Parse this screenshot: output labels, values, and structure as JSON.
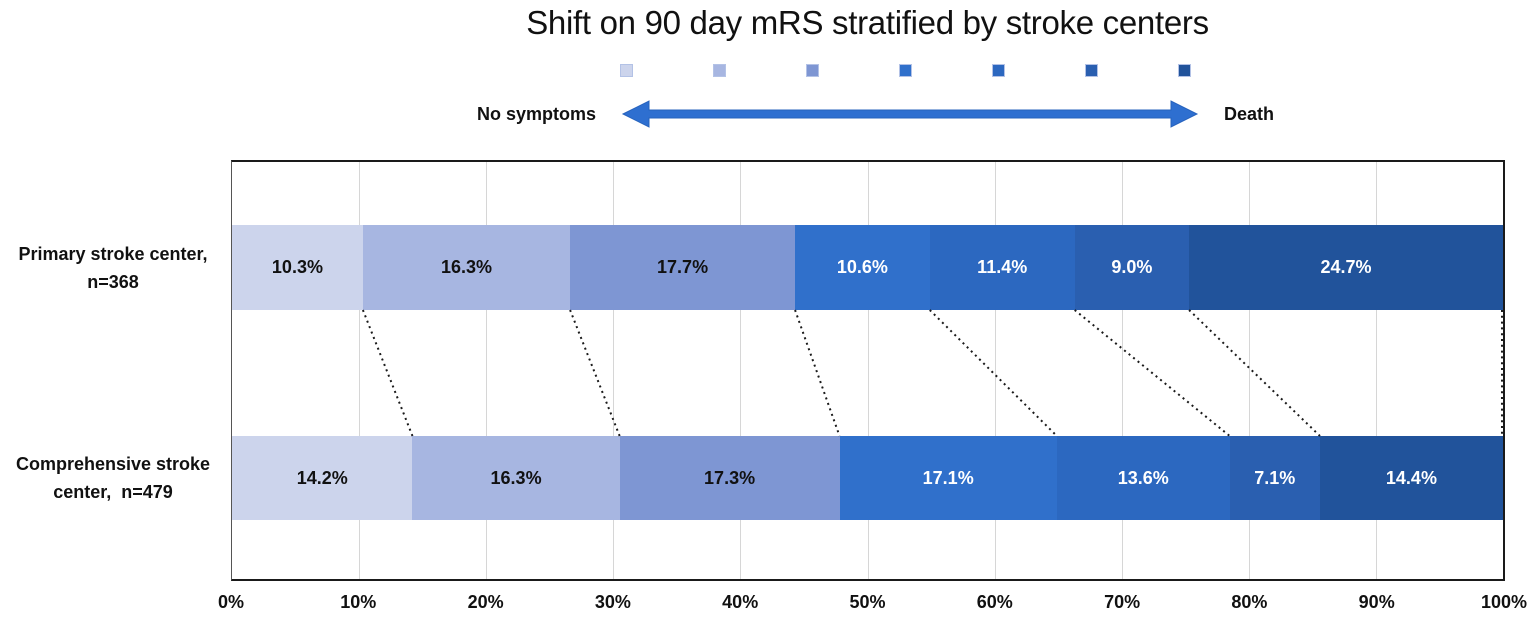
{
  "title": "Shift on 90 day mRS stratified by stroke centers",
  "arrow_annotation": {
    "left_label": "No symptoms",
    "right_label": "Death"
  },
  "colors": {
    "segments": [
      "#ccd4ec",
      "#a7b6e1",
      "#7e96d3",
      "#3070cb",
      "#2c68c0",
      "#2a5fb0",
      "#21539b"
    ],
    "legend_border": "#b3c2e6",
    "arrow": "#2e6fd0",
    "gridline": "#d6d6d6",
    "frame": "#1a1a1a",
    "connector": "#1a1a1a",
    "text_dark": "#111111",
    "text_light": "#ffffff"
  },
  "chart_data": {
    "type": "bar",
    "subtype": "stacked-horizontal",
    "title": "Shift on 90 day mRS stratified by stroke centers",
    "xlim": [
      0,
      100
    ],
    "grid": true,
    "x_ticks": [
      "0%",
      "10%",
      "20%",
      "30%",
      "40%",
      "50%",
      "60%",
      "70%",
      "80%",
      "90%",
      "100%"
    ],
    "value_suffix": "%",
    "num_segments": 7,
    "rows": [
      {
        "label": "Primary stroke center, n=368",
        "label_lines": [
          "Primary stroke center,",
          "n=368"
        ],
        "values": [
          10.3,
          16.3,
          17.7,
          10.6,
          11.4,
          9.0,
          24.7
        ],
        "value_labels": [
          "10.3%",
          "16.3%",
          "17.7%",
          "10.6%",
          "11.4%",
          "9.0%",
          "24.7%"
        ]
      },
      {
        "label": "Comprehensive stroke center, n=479",
        "label_lines": [
          "Comprehensive stroke",
          "center,  n=479"
        ],
        "values": [
          14.2,
          16.3,
          17.3,
          17.1,
          13.6,
          7.1,
          14.4
        ],
        "value_labels": [
          "14.2%",
          "16.3%",
          "17.3%",
          "17.1%",
          "13.6%",
          "7.1%",
          "14.4%"
        ]
      }
    ]
  }
}
